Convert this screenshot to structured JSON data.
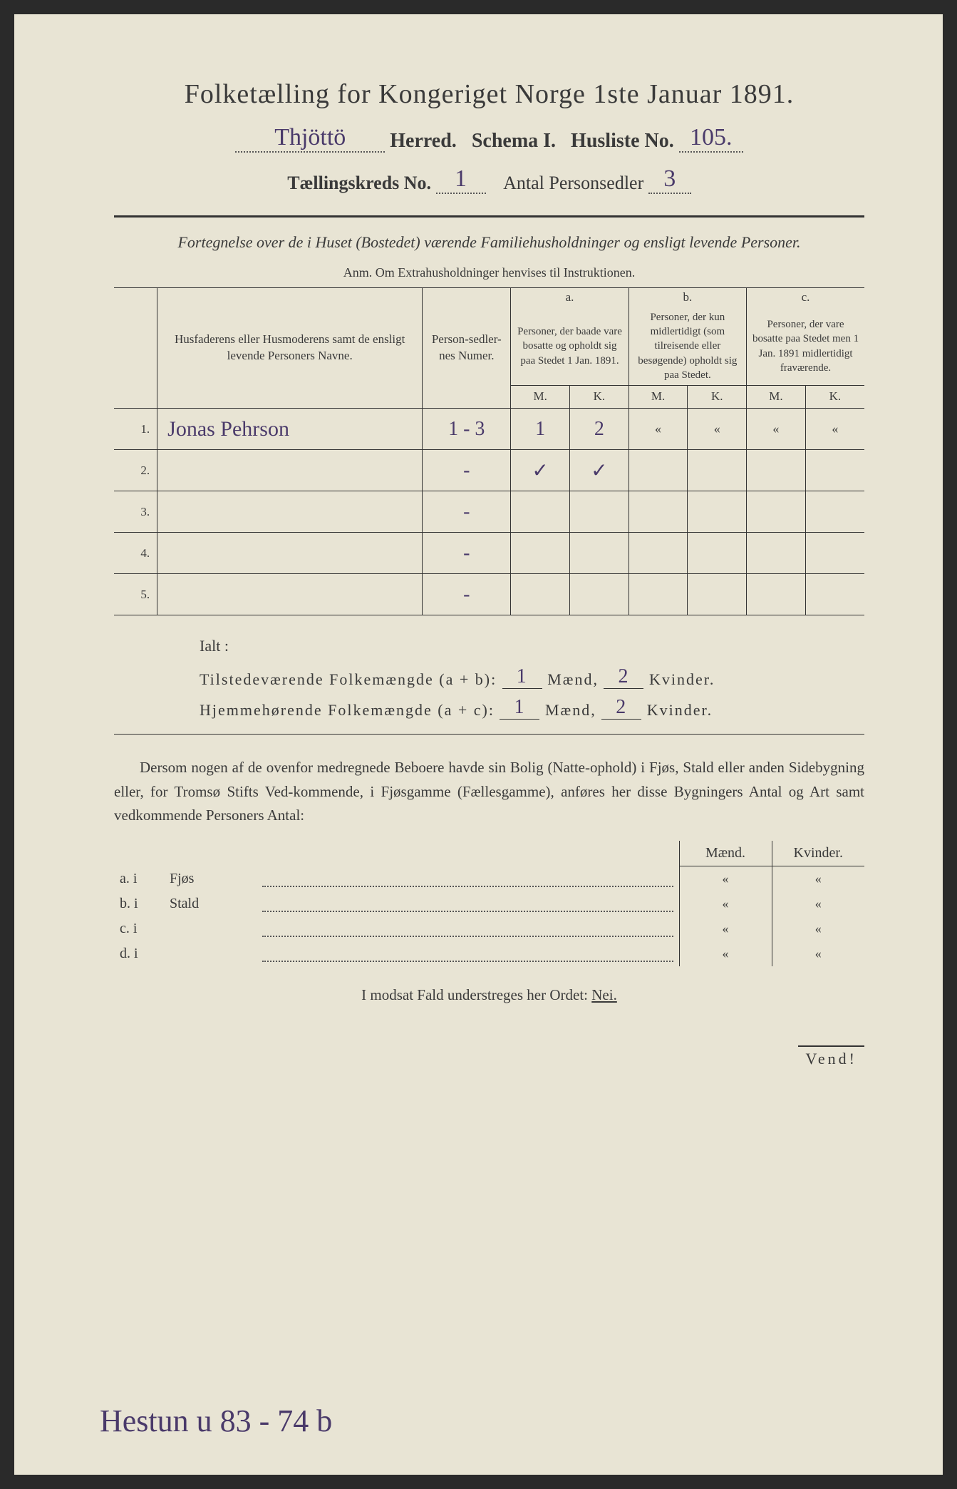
{
  "colors": {
    "paper_bg": "#e8e4d4",
    "ink": "#3a3a3a",
    "handwriting": "#4a3a6a",
    "outer_bg": "#2a2a2a"
  },
  "typography": {
    "title_fontsize": 38,
    "body_fontsize": 21,
    "table_fontsize": 17,
    "handwriting_font": "Brush Script MT, cursive",
    "print_font": "Georgia, Times New Roman, serif"
  },
  "header": {
    "title": "Folketælling for Kongeriget Norge 1ste Januar 1891.",
    "herred_hw": "Thjöttö",
    "herred_label": "Herred.",
    "schema_label": "Schema I.",
    "husliste_label": "Husliste No.",
    "husliste_no": "105.",
    "kreds_label": "Tællingskreds No.",
    "kreds_no": "1",
    "personsedler_label": "Antal Personsedler",
    "personsedler_no": "3"
  },
  "subtitle": "Fortegnelse over de i Huset (Bostedet) værende Familiehusholdninger og ensligt levende Personer.",
  "anm": "Anm.  Om Extrahusholdninger henvises til Instruktionen.",
  "table": {
    "col_name": "Husfaderens eller Husmoderens samt de ensligt levende Personers Navne.",
    "col_sedler": "Person-sedler-nes Numer.",
    "col_a_label": "a.",
    "col_a": "Personer, der baade vare bosatte og opholdt sig paa Stedet 1 Jan. 1891.",
    "col_b_label": "b.",
    "col_b": "Personer, der kun midlertidigt (som tilreisende eller besøgende) opholdt sig paa Stedet.",
    "col_c_label": "c.",
    "col_c": "Personer, der vare bosatte paa Stedet men 1 Jan. 1891 midlertidigt fraværende.",
    "m": "M.",
    "k": "K.",
    "rows": [
      {
        "n": "1.",
        "name": "Jonas Pehrson",
        "sedler": "1 - 3",
        "am": "1",
        "ak": "2",
        "bm": "«",
        "bk": "«",
        "cm": "«",
        "ck": "«"
      },
      {
        "n": "2.",
        "name": "",
        "sedler": "-",
        "am": "✓",
        "ak": "✓",
        "bm": "",
        "bk": "",
        "cm": "",
        "ck": ""
      },
      {
        "n": "3.",
        "name": "",
        "sedler": "-",
        "am": "",
        "ak": "",
        "bm": "",
        "bk": "",
        "cm": "",
        "ck": ""
      },
      {
        "n": "4.",
        "name": "",
        "sedler": "-",
        "am": "",
        "ak": "",
        "bm": "",
        "bk": "",
        "cm": "",
        "ck": ""
      },
      {
        "n": "5.",
        "name": "",
        "sedler": "-",
        "am": "",
        "ak": "",
        "bm": "",
        "bk": "",
        "cm": "",
        "ck": ""
      }
    ]
  },
  "ialt": {
    "label": "Ialt :",
    "row1_label": "Tilstedeværende Folkemængde (a + b):",
    "row2_label": "Hjemmehørende Folkemængde (a + c):",
    "maend": "Mænd,",
    "kvinder": "Kvinder.",
    "r1_m": "1",
    "r1_k": "2",
    "r2_m": "1",
    "r2_k": "2"
  },
  "para": "Dersom nogen af de ovenfor medregnede Beboere havde sin Bolig (Natte-ophold) i Fjøs, Stald eller anden Sidebygning eller, for Tromsø Stifts Ved-kommende, i Fjøsgamme (Fællesgamme), anføres her disse Bygningers Antal og Art samt vedkommende Personers Antal:",
  "bldg": {
    "maend": "Mænd.",
    "kvinder": "Kvinder.",
    "rows": [
      {
        "label": "a.  i",
        "name": "Fjøs",
        "m": "«",
        "k": "«"
      },
      {
        "label": "b.  i",
        "name": "Stald",
        "m": "«",
        "k": "«"
      },
      {
        "label": "c.  i",
        "name": "",
        "m": "«",
        "k": "«"
      },
      {
        "label": "d.  i",
        "name": "",
        "m": "«",
        "k": "«"
      }
    ]
  },
  "nei_line": "I modsat Fald understreges her Ordet:",
  "nei": "Nei.",
  "vend": "Vend!",
  "bottom_hw": "Hestun u 83 - 74 b"
}
